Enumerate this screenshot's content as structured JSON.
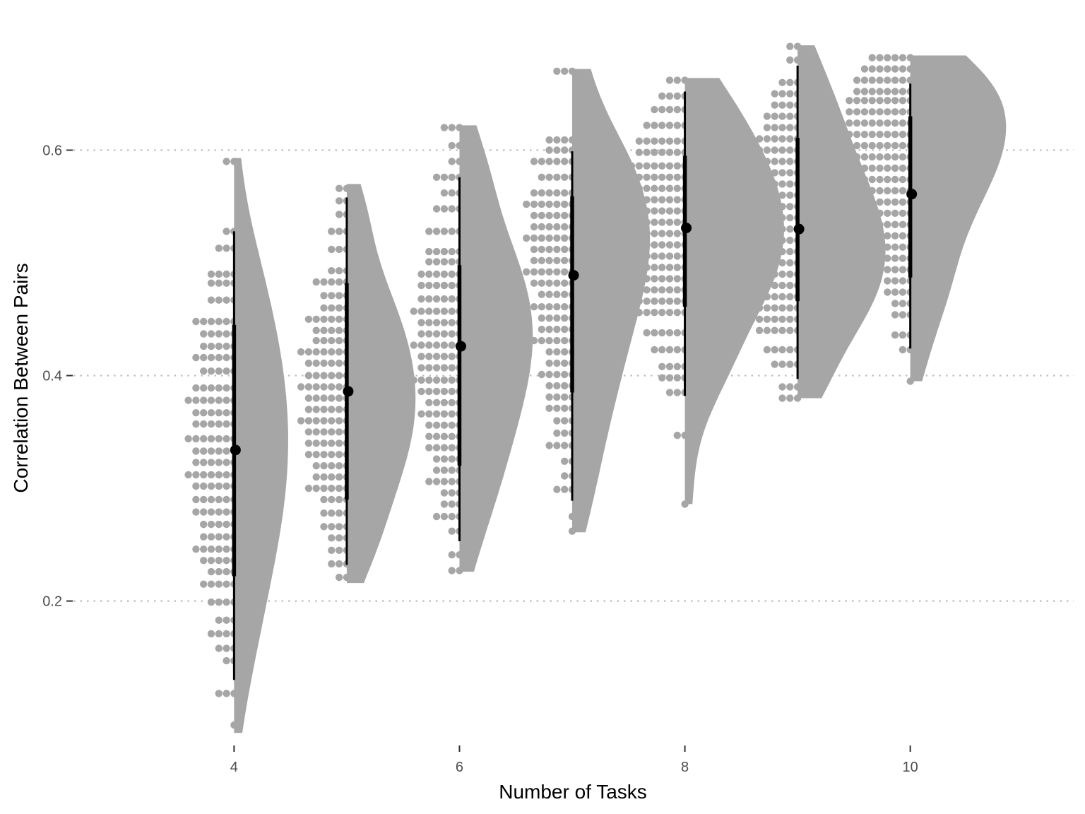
{
  "chart_data": {
    "type": "raincloud",
    "title": "",
    "xlabel": "Number of Tasks",
    "ylabel": "Correlation Between Pairs",
    "x_ticks": [
      "4",
      "6",
      "8",
      "10"
    ],
    "y_ticks": [
      "0.2",
      "0.4",
      "0.6"
    ],
    "xlim": [
      2.6,
      11.45
    ],
    "ylim": [
      0.075,
      0.705
    ],
    "grid": "horizontal-dotted",
    "colors": {
      "points": "#a6a6a6",
      "density": "#a6a6a6",
      "interval": "#000000",
      "grid": "#bdbdbd"
    },
    "groups": [
      {
        "x": 4,
        "median": 0.334,
        "interval_66": [
          0.222,
          0.445
        ],
        "interval_95": [
          0.13,
          0.528
        ],
        "min": 0.083,
        "max": 0.593,
        "density_peak": 0.35,
        "density_width": 0.48,
        "points": [
          0.59,
          0.528,
          0.513,
          0.49,
          0.482,
          0.467,
          0.448,
          0.437,
          0.426,
          0.416,
          0.404,
          0.389,
          0.378,
          0.367,
          0.357,
          0.344,
          0.333,
          0.323,
          0.312,
          0.302,
          0.29,
          0.279,
          0.268,
          0.257,
          0.246,
          0.236,
          0.226,
          0.215,
          0.199,
          0.183,
          0.171,
          0.158,
          0.147,
          0.118,
          0.09
        ]
      },
      {
        "x": 5,
        "median": 0.386,
        "interval_66": [
          0.29,
          0.482
        ],
        "interval_95": [
          0.232,
          0.558
        ],
        "min": 0.216,
        "max": 0.57,
        "density_peak": 0.38,
        "density_width": 0.61,
        "points": [
          0.566,
          0.555,
          0.543,
          0.528,
          0.512,
          0.493,
          0.483,
          0.471,
          0.46,
          0.45,
          0.44,
          0.431,
          0.421,
          0.411,
          0.4,
          0.39,
          0.38,
          0.37,
          0.36,
          0.35,
          0.34,
          0.33,
          0.32,
          0.31,
          0.3,
          0.29,
          0.278,
          0.266,
          0.256,
          0.245,
          0.233,
          0.221
        ]
      },
      {
        "x": 6,
        "median": 0.426,
        "interval_66": [
          0.32,
          0.498
        ],
        "interval_95": [
          0.253,
          0.576
        ],
        "min": 0.226,
        "max": 0.622,
        "density_peak": 0.44,
        "density_width": 0.65,
        "points": [
          0.62,
          0.604,
          0.59,
          0.576,
          0.562,
          0.548,
          0.528,
          0.51,
          0.501,
          0.49,
          0.48,
          0.468,
          0.457,
          0.447,
          0.437,
          0.427,
          0.417,
          0.407,
          0.396,
          0.386,
          0.376,
          0.366,
          0.356,
          0.346,
          0.336,
          0.326,
          0.316,
          0.306,
          0.296,
          0.286,
          0.275,
          0.262,
          0.241,
          0.227
        ]
      },
      {
        "x": 7,
        "median": 0.489,
        "interval_66": [
          0.385,
          0.559
        ],
        "interval_95": [
          0.289,
          0.599
        ],
        "min": 0.261,
        "max": 0.672,
        "density_peak": 0.53,
        "density_width": 0.69,
        "points": [
          0.67,
          0.609,
          0.6,
          0.59,
          0.576,
          0.562,
          0.552,
          0.542,
          0.532,
          0.522,
          0.512,
          0.502,
          0.492,
          0.482,
          0.472,
          0.461,
          0.451,
          0.441,
          0.431,
          0.421,
          0.411,
          0.401,
          0.391,
          0.381,
          0.371,
          0.36,
          0.349,
          0.338,
          0.324,
          0.311,
          0.299,
          0.275,
          0.262
        ]
      },
      {
        "x": 8,
        "median": 0.531,
        "interval_66": [
          0.461,
          0.595
        ],
        "interval_95": [
          0.382,
          0.652
        ],
        "min": 0.286,
        "max": 0.664,
        "density_peak": 0.53,
        "density_width": 0.88,
        "points": [
          0.662,
          0.648,
          0.636,
          0.622,
          0.608,
          0.598,
          0.586,
          0.576,
          0.566,
          0.556,
          0.546,
          0.536,
          0.526,
          0.516,
          0.506,
          0.496,
          0.486,
          0.476,
          0.466,
          0.456,
          0.438,
          0.423,
          0.408,
          0.398,
          0.385,
          0.347,
          0.286
        ]
      },
      {
        "x": 9,
        "median": 0.53,
        "interval_66": [
          0.466,
          0.611
        ],
        "interval_95": [
          0.397,
          0.675
        ],
        "min": 0.38,
        "max": 0.693,
        "density_peak": 0.51,
        "density_width": 0.78,
        "points": [
          0.692,
          0.68,
          0.66,
          0.65,
          0.64,
          0.63,
          0.62,
          0.61,
          0.6,
          0.59,
          0.58,
          0.57,
          0.56,
          0.55,
          0.54,
          0.53,
          0.52,
          0.51,
          0.5,
          0.49,
          0.48,
          0.47,
          0.46,
          0.45,
          0.44,
          0.423,
          0.41,
          0.39,
          0.38
        ]
      },
      {
        "x": 10,
        "median": 0.561,
        "interval_66": [
          0.487,
          0.63
        ],
        "interval_95": [
          0.424,
          0.659
        ],
        "min": 0.395,
        "max": 0.684,
        "density_peak": 0.62,
        "density_width": 0.85,
        "points": [
          0.682,
          0.672,
          0.662,
          0.652,
          0.644,
          0.634,
          0.624,
          0.614,
          0.604,
          0.594,
          0.584,
          0.574,
          0.564,
          0.554,
          0.544,
          0.534,
          0.524,
          0.514,
          0.504,
          0.494,
          0.484,
          0.474,
          0.464,
          0.454,
          0.436,
          0.423,
          0.395
        ]
      }
    ]
  }
}
